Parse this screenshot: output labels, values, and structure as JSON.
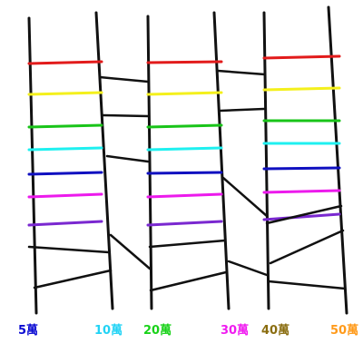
{
  "labels": [
    {
      "text": "5萬",
      "color": "#0a0ad2"
    },
    {
      "text": "10萬",
      "color": "#22d3f5"
    },
    {
      "text": "20萬",
      "color": "#19d219"
    },
    {
      "text": "30萬",
      "color": "#f01bf0"
    },
    {
      "text": "40萬",
      "color": "#8a6d10"
    },
    {
      "text": "50萬",
      "color": "#ff9a1a"
    }
  ],
  "rung_colors": [
    "#e21b1b",
    "#f4f01c",
    "#19c419",
    "#1ff0f0",
    "#1010c0",
    "#ec1aec",
    "#7a28d0"
  ],
  "line_color": "#111111"
}
